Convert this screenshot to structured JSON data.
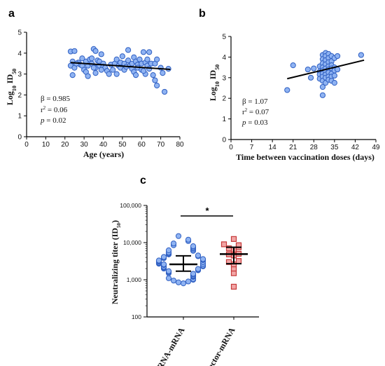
{
  "panels": {
    "a": "a",
    "b": "b",
    "c": "c"
  },
  "chart_data": [
    {
      "type": "scatter",
      "panel": "a",
      "xlabel": "Age (years)",
      "ylabel_main": "Log",
      "ylabel_sub": "10",
      "ylabel_tail": " ID",
      "ylabel_sub2": "50",
      "xlim": [
        0,
        80
      ],
      "ylim": [
        0,
        5
      ],
      "xticks": [
        0,
        10,
        20,
        30,
        40,
        50,
        60,
        70,
        80
      ],
      "yticks": [
        0,
        1,
        2,
        3,
        4,
        5
      ],
      "stats": {
        "beta": "β = 0.985",
        "r2_prefix": "r",
        "r2_sup": "2",
        "r2_value": " = 0.06",
        "p_symbol": "p",
        "p_value": " = 0.02"
      },
      "regression": {
        "x": [
          23,
          75
        ],
        "y": [
          3.55,
          3.22
        ]
      },
      "points": [
        [
          23,
          4.08
        ],
        [
          25,
          4.1
        ],
        [
          24,
          3.6
        ],
        [
          23,
          3.4
        ],
        [
          25,
          3.3
        ],
        [
          24,
          2.95
        ],
        [
          27,
          3.55
        ],
        [
          28,
          3.45
        ],
        [
          26,
          3.5
        ],
        [
          29,
          3.4
        ],
        [
          30,
          3.2
        ],
        [
          31,
          3.6
        ],
        [
          31,
          3.1
        ],
        [
          32,
          3.4
        ],
        [
          33,
          3.7
        ],
        [
          34,
          3.75
        ],
        [
          34,
          3.5
        ],
        [
          35,
          4.2
        ],
        [
          36,
          4.1
        ],
        [
          36,
          3.3
        ],
        [
          36,
          3.05
        ],
        [
          37,
          3.65
        ],
        [
          38,
          3.6
        ],
        [
          38,
          3.4
        ],
        [
          39,
          3.95
        ],
        [
          40,
          3.5
        ],
        [
          40,
          3.35
        ],
        [
          41,
          3.3
        ],
        [
          42,
          3.15
        ],
        [
          43,
          3.0
        ],
        [
          44,
          3.45
        ],
        [
          46,
          3.5
        ],
        [
          47,
          3.7
        ],
        [
          47,
          3.0
        ],
        [
          48,
          3.4
        ],
        [
          49,
          3.55
        ],
        [
          49,
          3.3
        ],
        [
          50,
          3.85
        ],
        [
          51,
          3.5
        ],
        [
          51,
          3.2
        ],
        [
          52,
          3.35
        ],
        [
          53,
          4.15
        ],
        [
          53,
          3.65
        ],
        [
          54,
          3.4
        ],
        [
          55,
          3.5
        ],
        [
          55,
          3.25
        ],
        [
          56,
          3.8
        ],
        [
          56,
          3.1
        ],
        [
          57,
          3.6
        ],
        [
          57,
          2.95
        ],
        [
          58,
          3.45
        ],
        [
          58,
          3.3
        ],
        [
          59,
          3.7
        ],
        [
          60,
          3.5
        ],
        [
          60,
          3.2
        ],
        [
          61,
          4.05
        ],
        [
          62,
          3.55
        ],
        [
          62,
          3.0
        ],
        [
          63,
          3.7
        ],
        [
          63,
          3.4
        ],
        [
          64,
          4.05
        ],
        [
          64,
          3.25
        ],
        [
          65,
          3.5
        ],
        [
          66,
          2.95
        ],
        [
          67,
          2.7
        ],
        [
          67,
          3.5
        ],
        [
          68,
          3.7
        ],
        [
          68,
          2.45
        ],
        [
          70,
          3.3
        ],
        [
          71,
          3.05
        ],
        [
          72,
          2.15
        ],
        [
          74,
          3.25
        ],
        [
          45,
          3.2
        ],
        [
          35,
          3.3
        ],
        [
          29,
          3.75
        ],
        [
          32,
          2.9
        ],
        [
          39,
          3.2
        ],
        [
          61,
          3.15
        ]
      ]
    },
    {
      "type": "scatter",
      "panel": "b",
      "xlabel": "Time between vaccination doses (days)",
      "ylabel_main": "Log",
      "ylabel_sub": "10",
      "ylabel_tail": " ID",
      "ylabel_sub2": "50",
      "xlim": [
        0,
        49
      ],
      "ylim": [
        0,
        5
      ],
      "xticks": [
        0,
        7,
        14,
        21,
        28,
        35,
        42,
        49
      ],
      "yticks": [
        0,
        1,
        2,
        3,
        4,
        5
      ],
      "stats": {
        "beta": "β = 1.07",
        "r2_prefix": "r",
        "r2_sup": "2",
        "r2_value": " = 0.07",
        "p_symbol": "p",
        "p_value": " = 0.03"
      },
      "regression": {
        "x": [
          19,
          45
        ],
        "y": [
          2.95,
          3.85
        ]
      },
      "points": [
        [
          19,
          2.4
        ],
        [
          21,
          3.6
        ],
        [
          26,
          3.4
        ],
        [
          27,
          3.0
        ],
        [
          28,
          3.45
        ],
        [
          30,
          3.55
        ],
        [
          30,
          3.3
        ],
        [
          30,
          3.15
        ],
        [
          30,
          2.95
        ],
        [
          31,
          4.1
        ],
        [
          31,
          3.9
        ],
        [
          31,
          3.7
        ],
        [
          31,
          3.5
        ],
        [
          31,
          3.35
        ],
        [
          31,
          3.2
        ],
        [
          31,
          3.05
        ],
        [
          31,
          2.85
        ],
        [
          31,
          2.55
        ],
        [
          31,
          2.15
        ],
        [
          32,
          4.2
        ],
        [
          32,
          4.05
        ],
        [
          32,
          3.85
        ],
        [
          32,
          3.65
        ],
        [
          32,
          3.45
        ],
        [
          32,
          3.3
        ],
        [
          32,
          3.15
        ],
        [
          32,
          3.0
        ],
        [
          32,
          2.75
        ],
        [
          33,
          4.15
        ],
        [
          33,
          3.95
        ],
        [
          33,
          3.75
        ],
        [
          33,
          3.55
        ],
        [
          33,
          3.4
        ],
        [
          33,
          3.25
        ],
        [
          33,
          3.05
        ],
        [
          33,
          2.9
        ],
        [
          34,
          4.05
        ],
        [
          34,
          3.8
        ],
        [
          34,
          3.6
        ],
        [
          34,
          3.45
        ],
        [
          34,
          3.2
        ],
        [
          34,
          3.05
        ],
        [
          34,
          2.85
        ],
        [
          35,
          3.95
        ],
        [
          35,
          3.5
        ],
        [
          35,
          3.35
        ],
        [
          35,
          3.1
        ],
        [
          35,
          2.75
        ],
        [
          36,
          4.05
        ],
        [
          36,
          3.4
        ],
        [
          44,
          4.1
        ]
      ]
    },
    {
      "type": "scatter",
      "panel": "c",
      "ylabel": "Neutralizing titer (ID",
      "ylabel_sub": "50",
      "ylabel_close": ")",
      "yscale": "log",
      "ylim": [
        100,
        100000
      ],
      "yticks": [
        100,
        1000,
        10000,
        100000
      ],
      "yticklabels": [
        "100",
        "1,000",
        "10,000",
        "100,000"
      ],
      "categories": [
        "mRNA-mRNA",
        "Vector-mRNA"
      ],
      "significance": "*",
      "series": [
        {
          "name": "mRNA-mRNA",
          "color": "#8fb3f2",
          "edge": "#2f5fc2",
          "marker": "circle",
          "median": 2600,
          "q1": 1700,
          "q3": 4400,
          "values": [
            15000,
            12000,
            11000,
            9500,
            8500,
            8000,
            7500,
            7000,
            6500,
            6200,
            6000,
            5500,
            5200,
            5000,
            4800,
            4500,
            4300,
            4100,
            4000,
            3800,
            3600,
            3500,
            3400,
            3300,
            3200,
            3100,
            3000,
            2900,
            2800,
            2700,
            2650,
            2600,
            2550,
            2500,
            2400,
            2300,
            2250,
            2200,
            2100,
            2000,
            1950,
            1900,
            1850,
            1800,
            1700,
            1650,
            1600,
            1500,
            1450,
            1400,
            1300,
            1250,
            1200,
            1100,
            1050,
            1000,
            950,
            900,
            850,
            800
          ]
        },
        {
          "name": "Vector-mRNA",
          "color": "#f2a5a5",
          "edge": "#c53a3a",
          "marker": "square",
          "median": 4900,
          "q1": 2700,
          "q3": 7500,
          "values": [
            12500,
            9000,
            8500,
            7500,
            7000,
            6500,
            5000,
            4800,
            4500,
            3200,
            3000,
            2600,
            2000,
            1500,
            650
          ]
        }
      ]
    }
  ]
}
